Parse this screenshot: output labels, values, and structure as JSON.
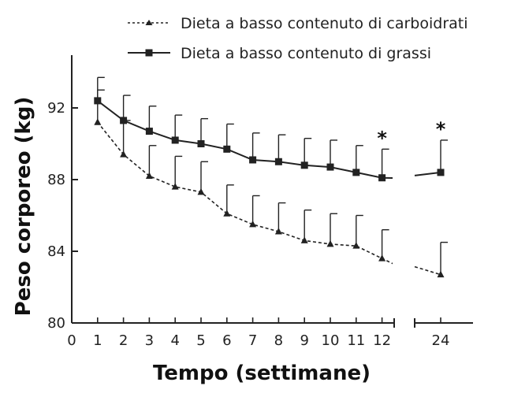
{
  "chart_data": {
    "type": "line",
    "xlabel": "Tempo (settimane)",
    "ylabel": "Peso corporeo (kg)",
    "x_ticks": [
      "0",
      "1",
      "2",
      "3",
      "4",
      "5",
      "6",
      "7",
      "8",
      "9",
      "10",
      "11",
      "12",
      "24"
    ],
    "y_ticks": [
      "80",
      "84",
      "88",
      "92"
    ],
    "ylim": [
      80,
      95
    ],
    "axis_break": "between 12 and 24",
    "legend_position": "top-right",
    "significance_marker": "*",
    "significance_at": [
      12,
      24
    ],
    "series": [
      {
        "name": "Dieta a basso contenuto di carboidrati",
        "style": "dashed",
        "marker": "triangle",
        "x": [
          1,
          2,
          3,
          4,
          5,
          6,
          7,
          8,
          9,
          10,
          11,
          12,
          24
        ],
        "values": [
          91.2,
          89.4,
          88.2,
          87.6,
          87.3,
          86.1,
          85.5,
          85.1,
          84.6,
          84.4,
          84.3,
          83.6,
          82.7
        ],
        "error_upper": [
          1.8,
          1.9,
          1.7,
          1.7,
          1.7,
          1.6,
          1.6,
          1.6,
          1.7,
          1.7,
          1.7,
          1.6,
          1.8
        ]
      },
      {
        "name": "Dieta a basso contenuto di grassi",
        "style": "solid",
        "marker": "square",
        "x": [
          1,
          2,
          3,
          4,
          5,
          6,
          7,
          8,
          9,
          10,
          11,
          12,
          24
        ],
        "values": [
          92.4,
          91.3,
          90.7,
          90.2,
          90.0,
          89.7,
          89.1,
          89.0,
          88.8,
          88.7,
          88.4,
          88.1,
          88.4
        ],
        "error_upper": [
          1.3,
          1.4,
          1.4,
          1.4,
          1.4,
          1.4,
          1.5,
          1.5,
          1.5,
          1.5,
          1.5,
          1.6,
          1.8
        ]
      }
    ]
  }
}
